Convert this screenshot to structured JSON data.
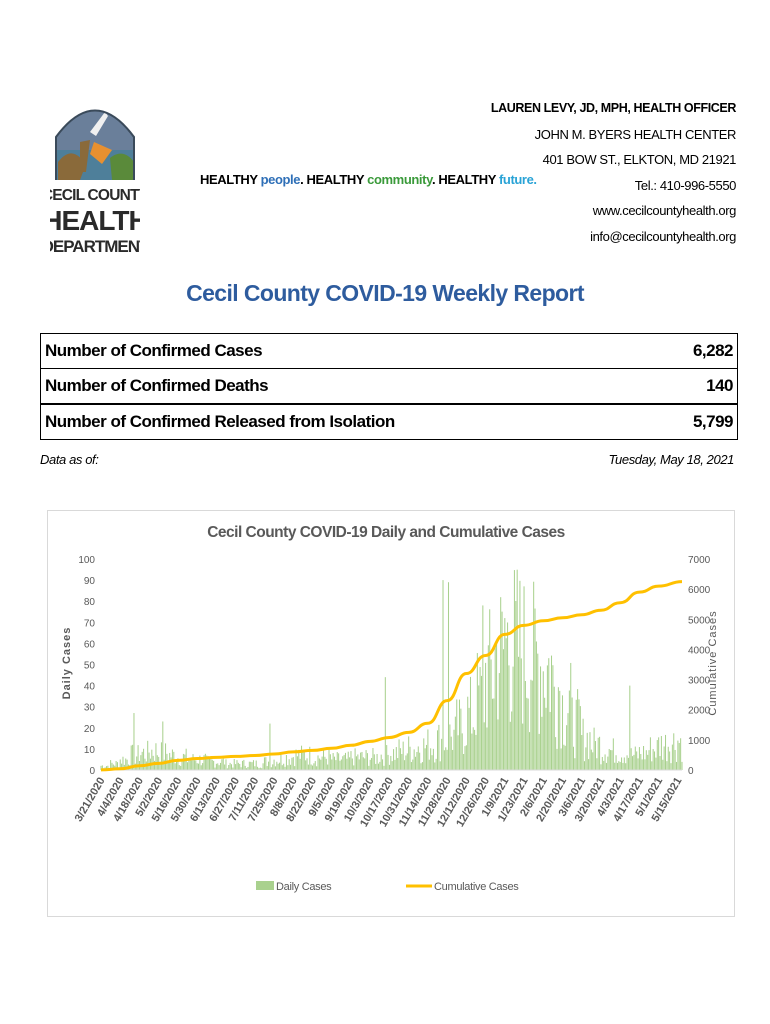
{
  "header": {
    "logo": {
      "line1": "CECIL COUNTY",
      "line2": "HEALTH",
      "line3": "DEPARTMENT"
    },
    "tagline": {
      "w1": "HEALTHY ",
      "people": "people",
      "p1": ". ",
      "w2": "HEALTHY ",
      "community": "community",
      "p2": ". ",
      "w3": "HEALTHY ",
      "future": "future."
    },
    "contact": {
      "officer": "LAUREN LEVY, JD, MPH, HEALTH OFFICER",
      "center": "JOHN M. BYERS HEALTH CENTER",
      "address": "401 BOW ST., ELKTON, MD 21921",
      "tel": "Tel.: 410-996-5550",
      "web": "www.cecilcountyhealth.org",
      "email": "info@cecilcountyhealth.org"
    }
  },
  "report_title": "Cecil County COVID-19 Weekly Report",
  "stats": [
    {
      "label": "Number of Confirmed Cases",
      "value": "6,282"
    },
    {
      "label": "Number of Confirmed Deaths",
      "value": "140"
    },
    {
      "label": "Number of Confirmed Released from Isolation",
      "value": "5,799"
    }
  ],
  "as_of": {
    "label": "Data as of:",
    "date": "Tuesday, May 18, 2021"
  },
  "colors": {
    "daily": "#a9d18e",
    "daily_dark": "#70ad47",
    "cumulative": "#ffc000",
    "title_blue": "#2e5c9e"
  },
  "chart_data": {
    "type": "bar",
    "title": "Cecil County COVID-19 Daily and Cumulative Cases",
    "ylabel": "Daily Cases",
    "y2label": "Cumulative Cases",
    "ylim": [
      0,
      100
    ],
    "y2lim": [
      0,
      7000
    ],
    "yticks": [
      0,
      10,
      20,
      30,
      40,
      50,
      60,
      70,
      80,
      90,
      100
    ],
    "y2ticks": [
      0,
      1000,
      2000,
      3000,
      4000,
      5000,
      6000,
      7000
    ],
    "xrange": [
      "3/21/2020",
      "5/18/2021"
    ],
    "xticks": [
      "3/21/2020",
      "4/4/2020",
      "4/18/2020",
      "5/2/2020",
      "5/16/2020",
      "5/30/2020",
      "6/13/2020",
      "6/27/2020",
      "7/11/2020",
      "7/25/2020",
      "8/8/2020",
      "8/22/2020",
      "9/5/2020",
      "9/19/2020",
      "10/3/2020",
      "10/17/2020",
      "10/31/2020",
      "11/14/2020",
      "11/28/2020",
      "12/12/2020",
      "12/26/2020",
      "1/9/2021",
      "1/23/2021",
      "2/6/2021",
      "2/20/2021",
      "3/6/2021",
      "3/20/2021",
      "4/3/2021",
      "4/17/2021",
      "5/1/2021",
      "5/15/2021"
    ],
    "legend": "bottom",
    "series": [
      {
        "name": "Daily Cases",
        "kind": "bar",
        "axis": "left",
        "daily_level_by_week": [
          2,
          3,
          5,
          7,
          8,
          9,
          8,
          7,
          6,
          5,
          5,
          4,
          4,
          3,
          3,
          3,
          3,
          4,
          5,
          6,
          7,
          7,
          6,
          6,
          5,
          5,
          6,
          6,
          6,
          7,
          8,
          9,
          10,
          11,
          12,
          14,
          16,
          20,
          26,
          34,
          45,
          55,
          60,
          58,
          55,
          52,
          48,
          40,
          30,
          22,
          15,
          12,
          10,
          9,
          8,
          7,
          8,
          10,
          12,
          13,
          14,
          12,
          10,
          8,
          7
        ],
        "peaks": [
          [
            "4/14/2020",
            27
          ],
          [
            "5/5/2020",
            23
          ],
          [
            "7/22/2020",
            22
          ],
          [
            "10/14/2020",
            44
          ],
          [
            "11/25/2020",
            90
          ],
          [
            "11/29/2020",
            89
          ],
          [
            "12/24/2020",
            78
          ],
          [
            "1/9/2021",
            72
          ],
          [
            "4/10/2021",
            40
          ]
        ]
      },
      {
        "name": "Cumulative Cases",
        "kind": "line",
        "axis": "right",
        "points": [
          [
            "3/21/2020",
            5
          ],
          [
            "4/4/2020",
            40
          ],
          [
            "4/18/2020",
            140
          ],
          [
            "5/2/2020",
            220
          ],
          [
            "5/16/2020",
            320
          ],
          [
            "5/30/2020",
            380
          ],
          [
            "6/13/2020",
            420
          ],
          [
            "6/27/2020",
            450
          ],
          [
            "7/11/2020",
            480
          ],
          [
            "7/25/2020",
            530
          ],
          [
            "8/8/2020",
            600
          ],
          [
            "8/22/2020",
            650
          ],
          [
            "9/5/2020",
            720
          ],
          [
            "9/19/2020",
            820
          ],
          [
            "10/3/2020",
            950
          ],
          [
            "10/17/2020",
            1080
          ],
          [
            "10/31/2020",
            1250
          ],
          [
            "11/14/2020",
            1550
          ],
          [
            "11/28/2020",
            2300
          ],
          [
            "12/12/2020",
            3200
          ],
          [
            "12/26/2020",
            3800
          ],
          [
            "1/9/2021",
            4500
          ],
          [
            "1/23/2021",
            4800
          ],
          [
            "2/6/2021",
            4950
          ],
          [
            "2/20/2021",
            5050
          ],
          [
            "3/6/2021",
            5150
          ],
          [
            "3/20/2021",
            5300
          ],
          [
            "4/3/2021",
            5550
          ],
          [
            "4/17/2021",
            5900
          ],
          [
            "5/1/2021",
            6100
          ],
          [
            "5/18/2021",
            6250
          ]
        ]
      }
    ]
  }
}
